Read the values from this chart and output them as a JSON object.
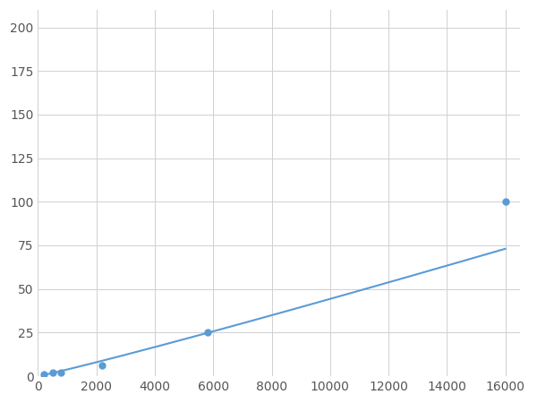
{
  "x": [
    200,
    500,
    800,
    2200,
    5800,
    16000
  ],
  "y": [
    1,
    2,
    2,
    6,
    25,
    100
  ],
  "line_color": "#5b9bd5",
  "marker_color": "#5b9bd5",
  "marker_size": 5,
  "line_width": 1.5,
  "xlim": [
    0,
    16500
  ],
  "ylim": [
    0,
    210
  ],
  "xticks": [
    0,
    2000,
    4000,
    6000,
    8000,
    10000,
    12000,
    14000,
    16000
  ],
  "yticks": [
    0,
    25,
    50,
    75,
    100,
    125,
    150,
    175,
    200
  ],
  "grid_color": "#d0d0d0",
  "background_color": "#ffffff",
  "figure_bg": "#ffffff",
  "tick_fontsize": 10,
  "tick_color": "#555555"
}
